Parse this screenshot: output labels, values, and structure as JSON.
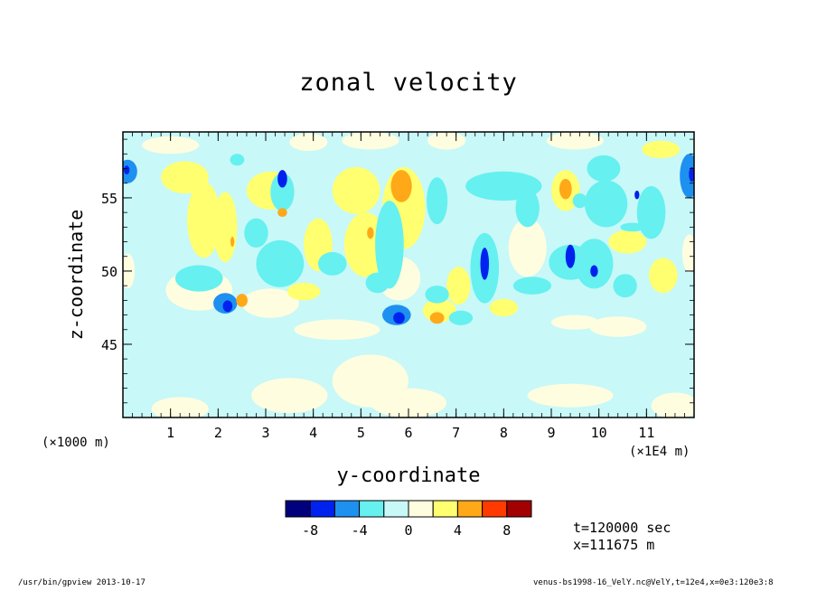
{
  "window": {
    "title": "zonal velocity"
  },
  "chart_data": {
    "type": "heatmap",
    "title": "zonal velocity",
    "xlabel": "y-coordinate",
    "ylabel": "z-coordinate",
    "x_unit_left": "(×1000 m)",
    "x_unit_right": "(×1E4 m)",
    "xlim": [
      0,
      12
    ],
    "ylim": [
      40,
      59.5
    ],
    "x_ticks": [
      1,
      2,
      3,
      4,
      5,
      6,
      7,
      8,
      9,
      10,
      11
    ],
    "y_ticks": [
      45,
      50,
      55
    ],
    "colorbar": {
      "levels": [
        -10,
        -8,
        -6,
        -4,
        -2,
        0,
        2,
        4,
        6,
        8,
        10
      ],
      "tick_labels": [
        "-8",
        "-4",
        "0",
        "4",
        "8"
      ],
      "tick_values": [
        -8,
        -4,
        0,
        4,
        8
      ],
      "colors": [
        "#00007f",
        "#0022ee",
        "#1e90f0",
        "#66f0f0",
        "#c8f8f8",
        "#fffde0",
        "#ffff70",
        "#ffa818",
        "#ff3a00",
        "#a30000"
      ]
    },
    "background_value": -1,
    "blobs": [
      {
        "x": 0.1,
        "y": 56.8,
        "rx": 0.2,
        "ry": 0.8,
        "v": -4.2
      },
      {
        "x": 0.08,
        "y": 56.9,
        "rx": 0.06,
        "ry": 0.3,
        "v": -7.5
      },
      {
        "x": 0.1,
        "y": 50,
        "rx": 0.15,
        "ry": 1.2,
        "v": 0.8
      },
      {
        "x": 0.3,
        "y": 47.8,
        "rx": 0.5,
        "ry": 1.0,
        "v": -0.2
      },
      {
        "x": 1.3,
        "y": 56.4,
        "rx": 0.5,
        "ry": 1.1,
        "v": 2.6
      },
      {
        "x": 1.7,
        "y": 53.5,
        "rx": 0.35,
        "ry": 2.6,
        "v": 2.3
      },
      {
        "x": 2.15,
        "y": 53.0,
        "rx": 0.25,
        "ry": 2.4,
        "v": 2.4
      },
      {
        "x": 2.3,
        "y": 52.0,
        "rx": 0.04,
        "ry": 0.35,
        "v": 5
      },
      {
        "x": 1.6,
        "y": 48.7,
        "rx": 0.7,
        "ry": 1.4,
        "v": 0.6
      },
      {
        "x": 1.6,
        "y": 49.5,
        "rx": 0.5,
        "ry": 0.9,
        "v": -3.2
      },
      {
        "x": 2.15,
        "y": 47.8,
        "rx": 0.25,
        "ry": 0.7,
        "v": -5.4
      },
      {
        "x": 2.2,
        "y": 47.6,
        "rx": 0.1,
        "ry": 0.4,
        "v": -7
      },
      {
        "x": 2.5,
        "y": 48.0,
        "rx": 0.12,
        "ry": 0.45,
        "v": 5.5
      },
      {
        "x": 2.4,
        "y": 57.6,
        "rx": 0.15,
        "ry": 0.4,
        "v": -3.5
      },
      {
        "x": 2.8,
        "y": 52.6,
        "rx": 0.25,
        "ry": 1.0,
        "v": -3.5
      },
      {
        "x": 3.1,
        "y": 55.5,
        "rx": 0.5,
        "ry": 1.3,
        "v": 2.0
      },
      {
        "x": 3.35,
        "y": 55.4,
        "rx": 0.25,
        "ry": 1.3,
        "v": -4
      },
      {
        "x": 3.35,
        "y": 56.3,
        "rx": 0.1,
        "ry": 0.6,
        "v": -7
      },
      {
        "x": 3.35,
        "y": 54.0,
        "rx": 0.1,
        "ry": 0.3,
        "v": 5
      },
      {
        "x": 3.3,
        "y": 50.5,
        "rx": 0.5,
        "ry": 1.6,
        "v": -3.3
      },
      {
        "x": 3.1,
        "y": 47.8,
        "rx": 0.6,
        "ry": 1.0,
        "v": 1.8
      },
      {
        "x": 3.8,
        "y": 48.6,
        "rx": 0.35,
        "ry": 0.6,
        "v": 2.2
      },
      {
        "x": 4.1,
        "y": 51.8,
        "rx": 0.3,
        "ry": 1.8,
        "v": 2.0
      },
      {
        "x": 4.4,
        "y": 50.5,
        "rx": 0.3,
        "ry": 0.8,
        "v": -2.6
      },
      {
        "x": 4.9,
        "y": 55.5,
        "rx": 0.5,
        "ry": 1.6,
        "v": 2.2
      },
      {
        "x": 5.1,
        "y": 51.8,
        "rx": 0.45,
        "ry": 2.2,
        "v": 2.5
      },
      {
        "x": 5.2,
        "y": 52.6,
        "rx": 0.07,
        "ry": 0.4,
        "v": 5.5
      },
      {
        "x": 5.6,
        "y": 51.8,
        "rx": 0.3,
        "ry": 3.0,
        "v": -3.3
      },
      {
        "x": 5.35,
        "y": 49.2,
        "rx": 0.25,
        "ry": 0.7,
        "v": -3.3
      },
      {
        "x": 5.9,
        "y": 54.3,
        "rx": 0.45,
        "ry": 2.8,
        "v": 2.5
      },
      {
        "x": 5.85,
        "y": 55.8,
        "rx": 0.22,
        "ry": 1.1,
        "v": 5.5
      },
      {
        "x": 5.8,
        "y": 49.5,
        "rx": 0.45,
        "ry": 1.5,
        "v": 1.8
      },
      {
        "x": 5.75,
        "y": 47.0,
        "rx": 0.3,
        "ry": 0.7,
        "v": -4.5
      },
      {
        "x": 5.8,
        "y": 46.8,
        "rx": 0.12,
        "ry": 0.4,
        "v": -7
      },
      {
        "x": 6.45,
        "y": 54.0,
        "rx": 0.28,
        "ry": 3.0,
        "v": -0.8
      },
      {
        "x": 6.6,
        "y": 54.8,
        "rx": 0.22,
        "ry": 1.6,
        "v": -4
      },
      {
        "x": 6.6,
        "y": 48.4,
        "rx": 0.25,
        "ry": 0.6,
        "v": -3.5
      },
      {
        "x": 6.65,
        "y": 47.3,
        "rx": 0.35,
        "ry": 0.8,
        "v": 2.8
      },
      {
        "x": 6.6,
        "y": 46.8,
        "rx": 0.15,
        "ry": 0.4,
        "v": 5.5
      },
      {
        "x": 7.05,
        "y": 49.0,
        "rx": 0.25,
        "ry": 1.3,
        "v": 2.2
      },
      {
        "x": 7.1,
        "y": 46.8,
        "rx": 0.25,
        "ry": 0.5,
        "v": -3
      },
      {
        "x": 7.5,
        "y": 53.5,
        "rx": 0.4,
        "ry": 2.4,
        "v": -2.0
      },
      {
        "x": 7.6,
        "y": 50.2,
        "rx": 0.3,
        "ry": 2.4,
        "v": -4
      },
      {
        "x": 7.6,
        "y": 50.5,
        "rx": 0.09,
        "ry": 1.1,
        "v": -6.5
      },
      {
        "x": 8.0,
        "y": 55.8,
        "rx": 0.8,
        "ry": 1.0,
        "v": -3.4
      },
      {
        "x": 8.5,
        "y": 54.3,
        "rx": 0.25,
        "ry": 1.3,
        "v": -2.8
      },
      {
        "x": 8.0,
        "y": 47.5,
        "rx": 0.3,
        "ry": 0.6,
        "v": 2.5
      },
      {
        "x": 8.5,
        "y": 51.6,
        "rx": 0.4,
        "ry": 2.0,
        "v": 1.8
      },
      {
        "x": 8.6,
        "y": 49.0,
        "rx": 0.4,
        "ry": 0.6,
        "v": -3.3
      },
      {
        "x": 9.3,
        "y": 55.5,
        "rx": 0.3,
        "ry": 1.4,
        "v": 2.3
      },
      {
        "x": 9.3,
        "y": 55.6,
        "rx": 0.13,
        "ry": 0.7,
        "v": 5.5
      },
      {
        "x": 9.6,
        "y": 54.8,
        "rx": 0.15,
        "ry": 0.5,
        "v": -3
      },
      {
        "x": 9.4,
        "y": 50.6,
        "rx": 0.45,
        "ry": 1.2,
        "v": -4
      },
      {
        "x": 9.4,
        "y": 51.0,
        "rx": 0.1,
        "ry": 0.8,
        "v": -6.5
      },
      {
        "x": 9.9,
        "y": 50.5,
        "rx": 0.4,
        "ry": 1.7,
        "v": -3.5
      },
      {
        "x": 9.9,
        "y": 50.0,
        "rx": 0.08,
        "ry": 0.4,
        "v": -7
      },
      {
        "x": 10.15,
        "y": 54.6,
        "rx": 0.45,
        "ry": 1.6,
        "v": -3.6
      },
      {
        "x": 10.1,
        "y": 57.0,
        "rx": 0.35,
        "ry": 0.9,
        "v": -3.2
      },
      {
        "x": 10.6,
        "y": 52.0,
        "rx": 0.4,
        "ry": 0.8,
        "v": 2.0
      },
      {
        "x": 10.7,
        "y": 53.0,
        "rx": 0.25,
        "ry": 0.3,
        "v": -3
      },
      {
        "x": 10.55,
        "y": 49.0,
        "rx": 0.25,
        "ry": 0.8,
        "v": -3.2
      },
      {
        "x": 11.1,
        "y": 54.0,
        "rx": 0.3,
        "ry": 1.8,
        "v": -3.2
      },
      {
        "x": 10.8,
        "y": 55.2,
        "rx": 0.05,
        "ry": 0.3,
        "v": -7
      },
      {
        "x": 11.3,
        "y": 58.3,
        "rx": 0.4,
        "ry": 0.6,
        "v": 2
      },
      {
        "x": 11.35,
        "y": 49.7,
        "rx": 0.3,
        "ry": 1.2,
        "v": 2
      },
      {
        "x": 11.9,
        "y": 56.5,
        "rx": 0.2,
        "ry": 1.5,
        "v": -4.3
      },
      {
        "x": 11.95,
        "y": 56.6,
        "rx": 0.06,
        "ry": 0.5,
        "v": -7.5
      },
      {
        "x": 11.9,
        "y": 51.2,
        "rx": 0.15,
        "ry": 1.3,
        "v": 1
      },
      {
        "x": 1.0,
        "y": 58.6,
        "rx": 0.6,
        "ry": 0.6,
        "v": 1.8
      },
      {
        "x": 3.9,
        "y": 58.8,
        "rx": 0.4,
        "ry": 0.6,
        "v": 1.8
      },
      {
        "x": 5.2,
        "y": 58.9,
        "rx": 0.6,
        "ry": 0.6,
        "v": 1.6
      },
      {
        "x": 6.8,
        "y": 58.9,
        "rx": 0.4,
        "ry": 0.6,
        "v": 1.6
      },
      {
        "x": 9.5,
        "y": 58.9,
        "rx": 0.6,
        "ry": 0.6,
        "v": 1.6
      },
      {
        "x": 1.2,
        "y": 40.6,
        "rx": 0.6,
        "ry": 0.8,
        "v": 1.5
      },
      {
        "x": 3.5,
        "y": 41.5,
        "rx": 0.8,
        "ry": 1.2,
        "v": 0.9
      },
      {
        "x": 5.2,
        "y": 42.5,
        "rx": 0.8,
        "ry": 1.8,
        "v": 0.8
      },
      {
        "x": 6.0,
        "y": 41.0,
        "rx": 0.8,
        "ry": 1.0,
        "v": 1.0
      },
      {
        "x": 9.4,
        "y": 41.5,
        "rx": 0.9,
        "ry": 0.8,
        "v": 0.8
      },
      {
        "x": 11.6,
        "y": 40.8,
        "rx": 0.5,
        "ry": 0.9,
        "v": 1.2
      },
      {
        "x": 10.4,
        "y": 46.2,
        "rx": 0.6,
        "ry": 0.7,
        "v": 0.8
      },
      {
        "x": 4.5,
        "y": 46.0,
        "rx": 0.9,
        "ry": 0.7,
        "v": 0.8
      },
      {
        "x": 9.5,
        "y": 46.5,
        "rx": 0.5,
        "ry": 0.5,
        "v": 1.0
      }
    ]
  },
  "info": {
    "time_line": "t=120000 sec",
    "x_line": "x=111675 m"
  },
  "footer": {
    "left": "/usr/bin/gpview  2013-10-17",
    "right": "venus-bs1998-16_VelY.nc@VelY,t=12e4,x=0e3:120e3:8"
  }
}
